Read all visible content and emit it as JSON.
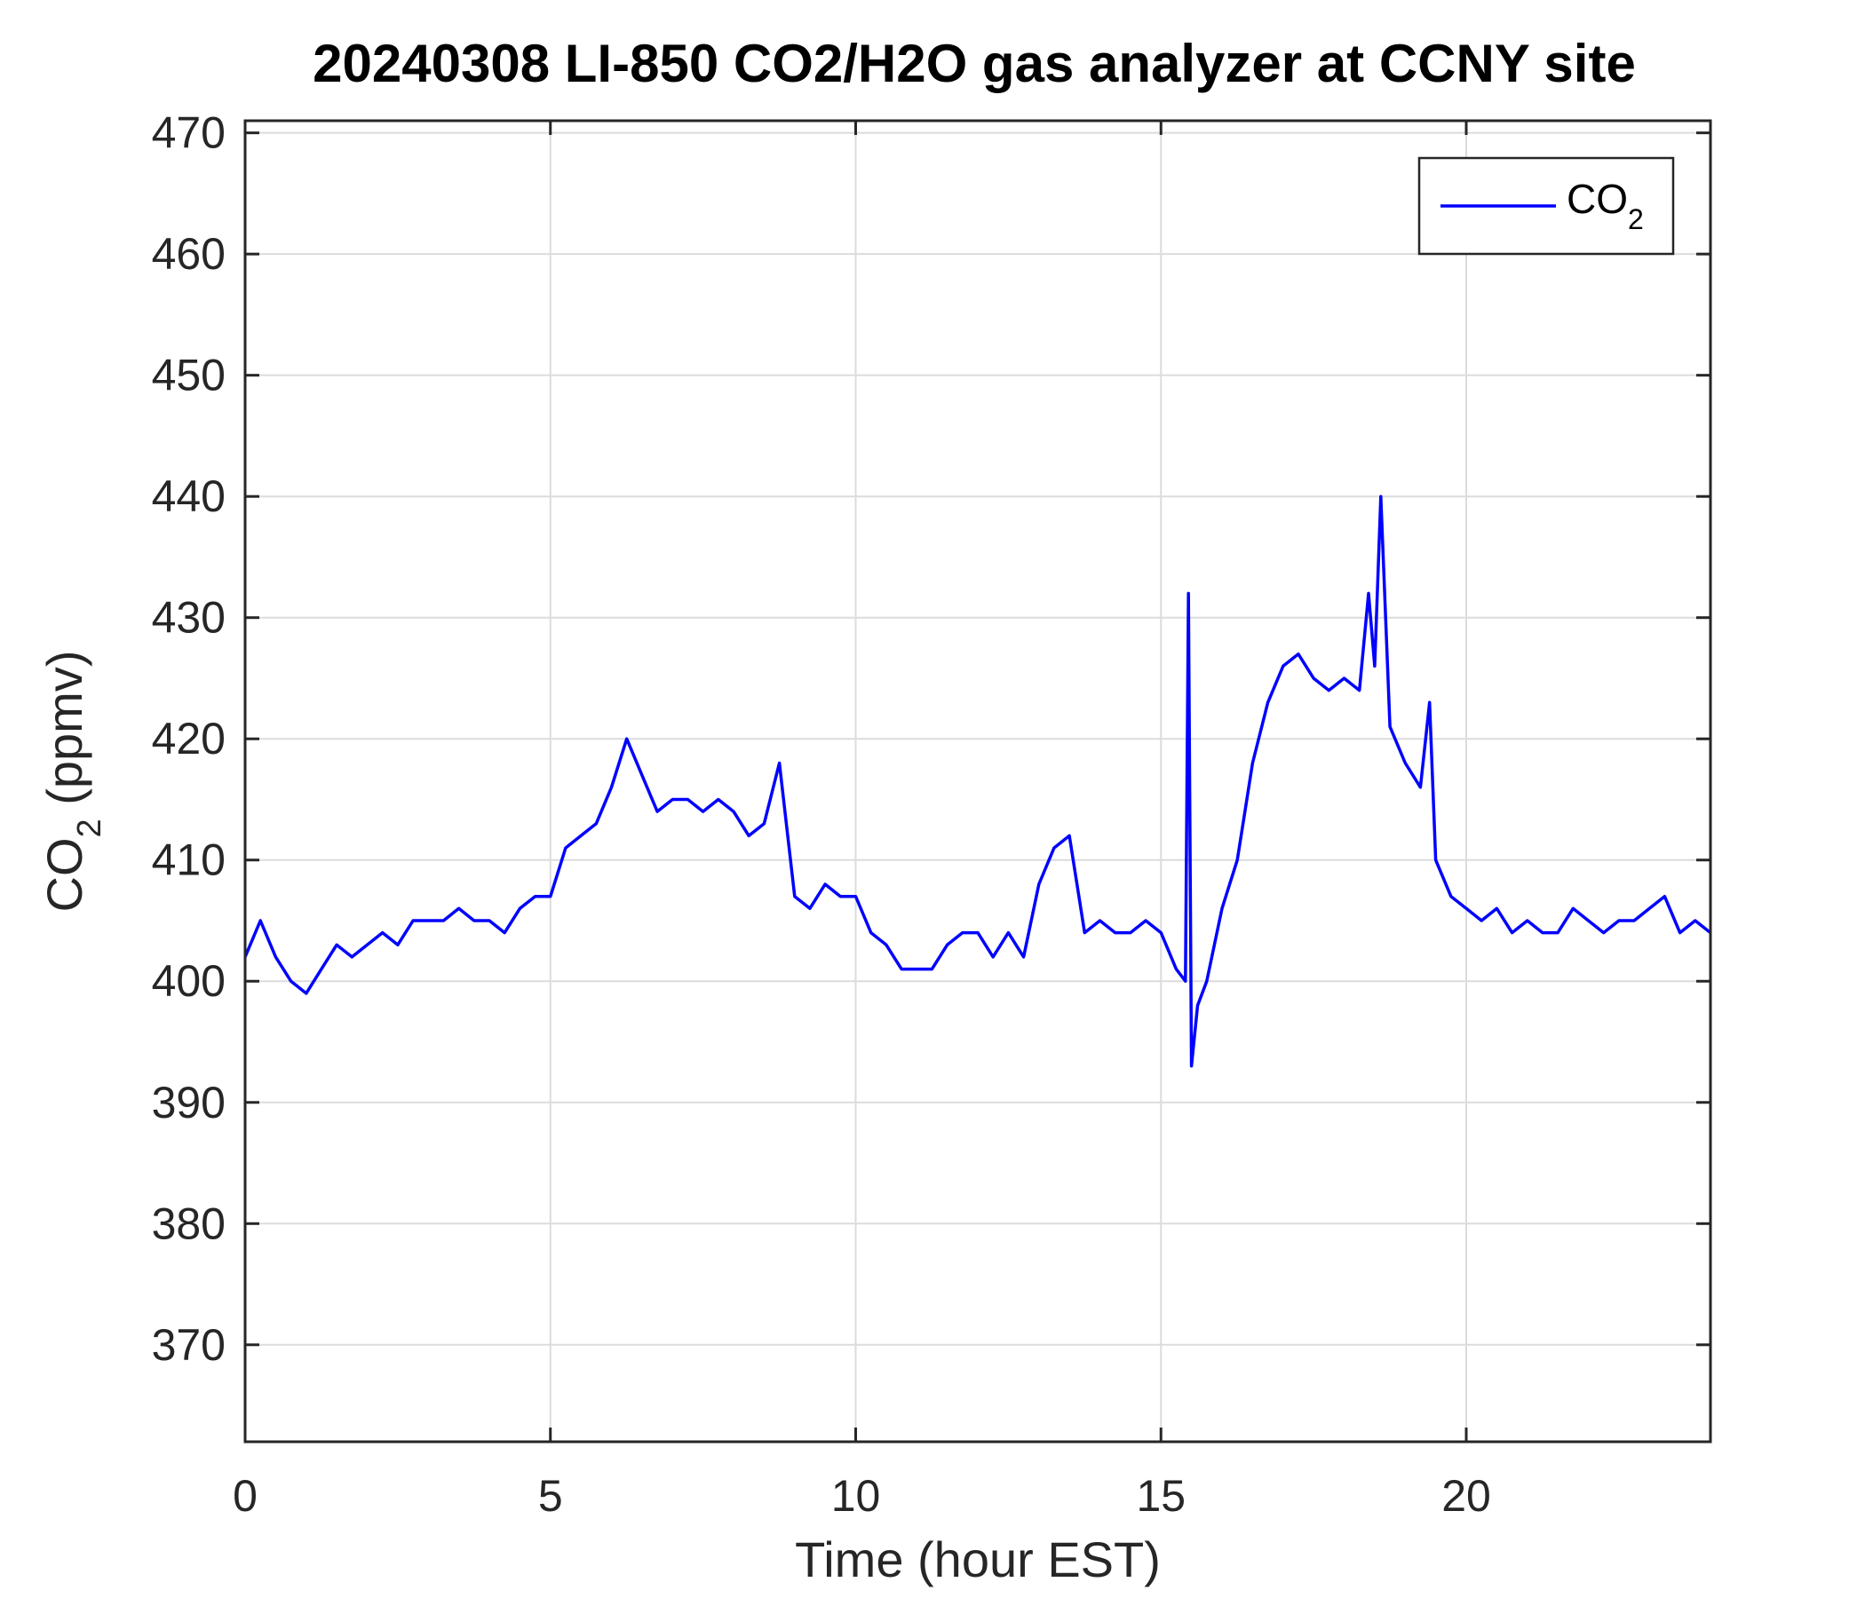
{
  "chart_data": {
    "type": "line",
    "title": "20240308 LI-850 CO2/H2O gas analyzer at CCNY site",
    "xlabel": "Time (hour EST)",
    "ylabel": {
      "prefix": "CO",
      "subscript": "2",
      "suffix": " (ppmv)"
    },
    "xlim": [
      0,
      24
    ],
    "ylim": [
      362,
      471
    ],
    "xticks": [
      0,
      5,
      10,
      15,
      20
    ],
    "yticks": [
      370,
      380,
      390,
      400,
      410,
      420,
      430,
      440,
      450,
      460,
      470
    ],
    "grid": true,
    "legend": {
      "placement": "top-right",
      "entries": [
        {
          "prefix": "CO",
          "subscript": "2"
        }
      ]
    },
    "series": [
      {
        "name": "CO2",
        "color": "#0000ff",
        "x": [
          0.0,
          0.25,
          0.5,
          0.75,
          1.0,
          1.25,
          1.5,
          1.75,
          2.0,
          2.25,
          2.5,
          2.75,
          3.0,
          3.25,
          3.5,
          3.75,
          4.0,
          4.25,
          4.5,
          4.75,
          5.0,
          5.25,
          5.5,
          5.75,
          6.0,
          6.25,
          6.5,
          6.75,
          7.0,
          7.25,
          7.5,
          7.75,
          8.0,
          8.25,
          8.5,
          8.75,
          9.0,
          9.25,
          9.5,
          9.75,
          10.0,
          10.25,
          10.5,
          10.75,
          11.0,
          11.25,
          11.5,
          11.75,
          12.0,
          12.25,
          12.5,
          12.75,
          13.0,
          13.25,
          13.5,
          13.75,
          14.0,
          14.25,
          14.5,
          14.75,
          15.0,
          15.25,
          15.4,
          15.45,
          15.5,
          15.6,
          15.75,
          16.0,
          16.25,
          16.5,
          16.75,
          17.0,
          17.25,
          17.5,
          17.75,
          18.0,
          18.25,
          18.4,
          18.5,
          18.6,
          18.75,
          19.0,
          19.25,
          19.4,
          19.5,
          19.75,
          20.0,
          20.25,
          20.5,
          20.75,
          21.0,
          21.25,
          21.5,
          21.75,
          22.0,
          22.25,
          22.5,
          22.75,
          23.0,
          23.25,
          23.5,
          23.75,
          24.0
        ],
        "values": [
          402,
          405,
          402,
          400,
          399,
          401,
          403,
          402,
          403,
          404,
          403,
          405,
          405,
          405,
          406,
          405,
          405,
          404,
          406,
          407,
          407,
          411,
          412,
          413,
          416,
          420,
          417,
          414,
          415,
          415,
          414,
          415,
          414,
          412,
          413,
          418,
          407,
          406,
          408,
          407,
          407,
          404,
          403,
          401,
          401,
          401,
          403,
          404,
          404,
          402,
          404,
          402,
          408,
          411,
          412,
          404,
          405,
          404,
          404,
          405,
          404,
          401,
          400,
          432,
          393,
          398,
          400,
          406,
          410,
          418,
          423,
          426,
          427,
          425,
          424,
          425,
          424,
          432,
          426,
          440,
          421,
          418,
          416,
          423,
          410,
          407,
          406,
          405,
          406,
          404,
          405,
          404,
          404,
          406,
          405,
          404,
          405,
          405,
          406,
          407,
          404,
          405,
          404
        ]
      }
    ]
  }
}
